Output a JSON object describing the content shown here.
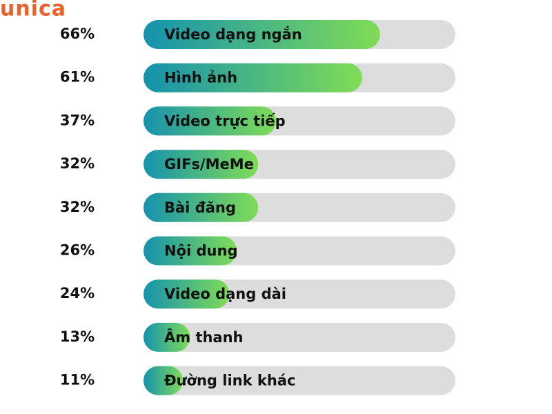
{
  "logo": "unica",
  "chart_data": {
    "type": "hbar",
    "categories": [
      "Video dạng ngắn",
      "Hình ảnh",
      "Video trực tiếp",
      "GIFs/MeMe",
      "Bài đăng",
      "Nội dung",
      "Video dạng dài",
      "Âm thanh",
      "Đường link khác"
    ],
    "values": [
      66,
      61,
      37,
      32,
      32,
      26,
      24,
      13,
      11
    ],
    "value_labels": [
      "66%",
      "61%",
      "37%",
      "32%",
      "32%",
      "26%",
      "24%",
      "13%",
      "11%"
    ],
    "xlim": [
      0,
      87
    ],
    "colors": [
      "#1592ae",
      "#80dc56"
    ],
    "track_color": "#dddddd"
  }
}
